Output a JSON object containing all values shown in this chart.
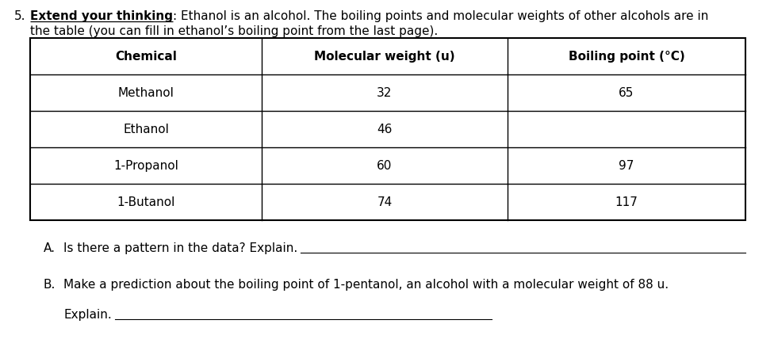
{
  "title_number": "5.",
  "title_bold": "Extend your thinking",
  "title_normal": ": Ethanol is an alcohol. The boiling points and molecular weights of other alcohols are in\nthe table (you can fill in ethanol’s boiling point from the last page).",
  "table_headers": [
    "Chemical",
    "Molecular weight (u)",
    "Boiling point (°C)"
  ],
  "table_rows": [
    [
      "Methanol",
      "32",
      "65"
    ],
    [
      "Ethanol",
      "46",
      ""
    ],
    [
      "1-Propanol",
      "60",
      "97"
    ],
    [
      "1-Butanol",
      "74",
      "117"
    ]
  ],
  "bg_color": "#ffffff",
  "text_color": "#000000",
  "font_size_body": 11,
  "font_size_header": 11,
  "line1_a": "A.   Is there a pattern in the data? Explain.",
  "line1_b": "B.   Make a prediction about the boiling point of 1-pentanol, an alcohol with a molecular weight of 88 u.",
  "line2_b": "Explain."
}
